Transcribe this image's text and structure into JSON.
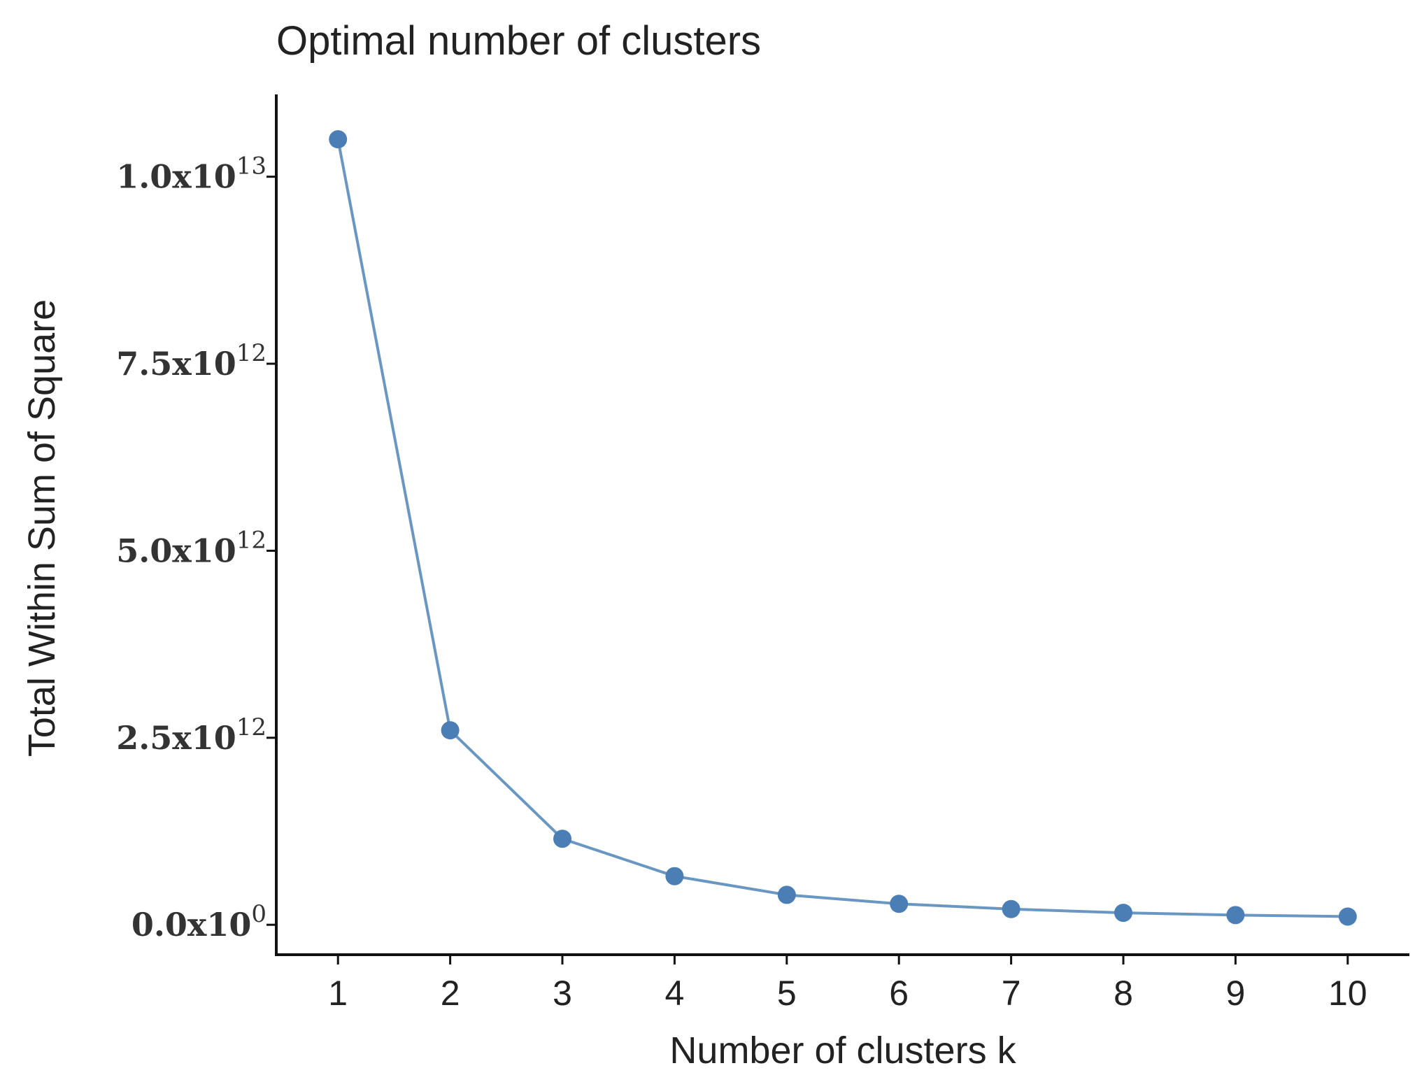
{
  "chart_data": {
    "type": "line",
    "title": "Optimal number of clusters",
    "xlabel": "Number of clusters k",
    "ylabel": "Total Within Sum of Square",
    "x": [
      1,
      2,
      3,
      4,
      5,
      6,
      7,
      8,
      9,
      10
    ],
    "series": [
      {
        "values": [
          10500000000000.0,
          2600000000000.0,
          1150000000000.0,
          650000000000.0,
          400000000000.0,
          280000000000.0,
          210000000000.0,
          160000000000.0,
          130000000000.0,
          110000000000.0
        ]
      }
    ],
    "xticks": [
      "1",
      "2",
      "3",
      "4",
      "5",
      "6",
      "7",
      "8",
      "9",
      "10"
    ],
    "yticks": [
      {
        "value": 0,
        "mantissa": "0.0x10",
        "exponent": "0"
      },
      {
        "value": 2500000000000.0,
        "mantissa": "2.5x10",
        "exponent": "12"
      },
      {
        "value": 5000000000000.0,
        "mantissa": "5.0x10",
        "exponent": "12"
      },
      {
        "value": 7500000000000.0,
        "mantissa": "7.5x10",
        "exponent": "12"
      },
      {
        "value": 10000000000000.0,
        "mantissa": "1.0x10",
        "exponent": "13"
      }
    ],
    "xlim": [
      0.45,
      10.55
    ],
    "ylim": [
      -400000000000.0,
      11100000000000.0
    ],
    "grid": false,
    "legend": "none",
    "line_color": "#6A97C2",
    "point_color": "#4A7EB5"
  }
}
